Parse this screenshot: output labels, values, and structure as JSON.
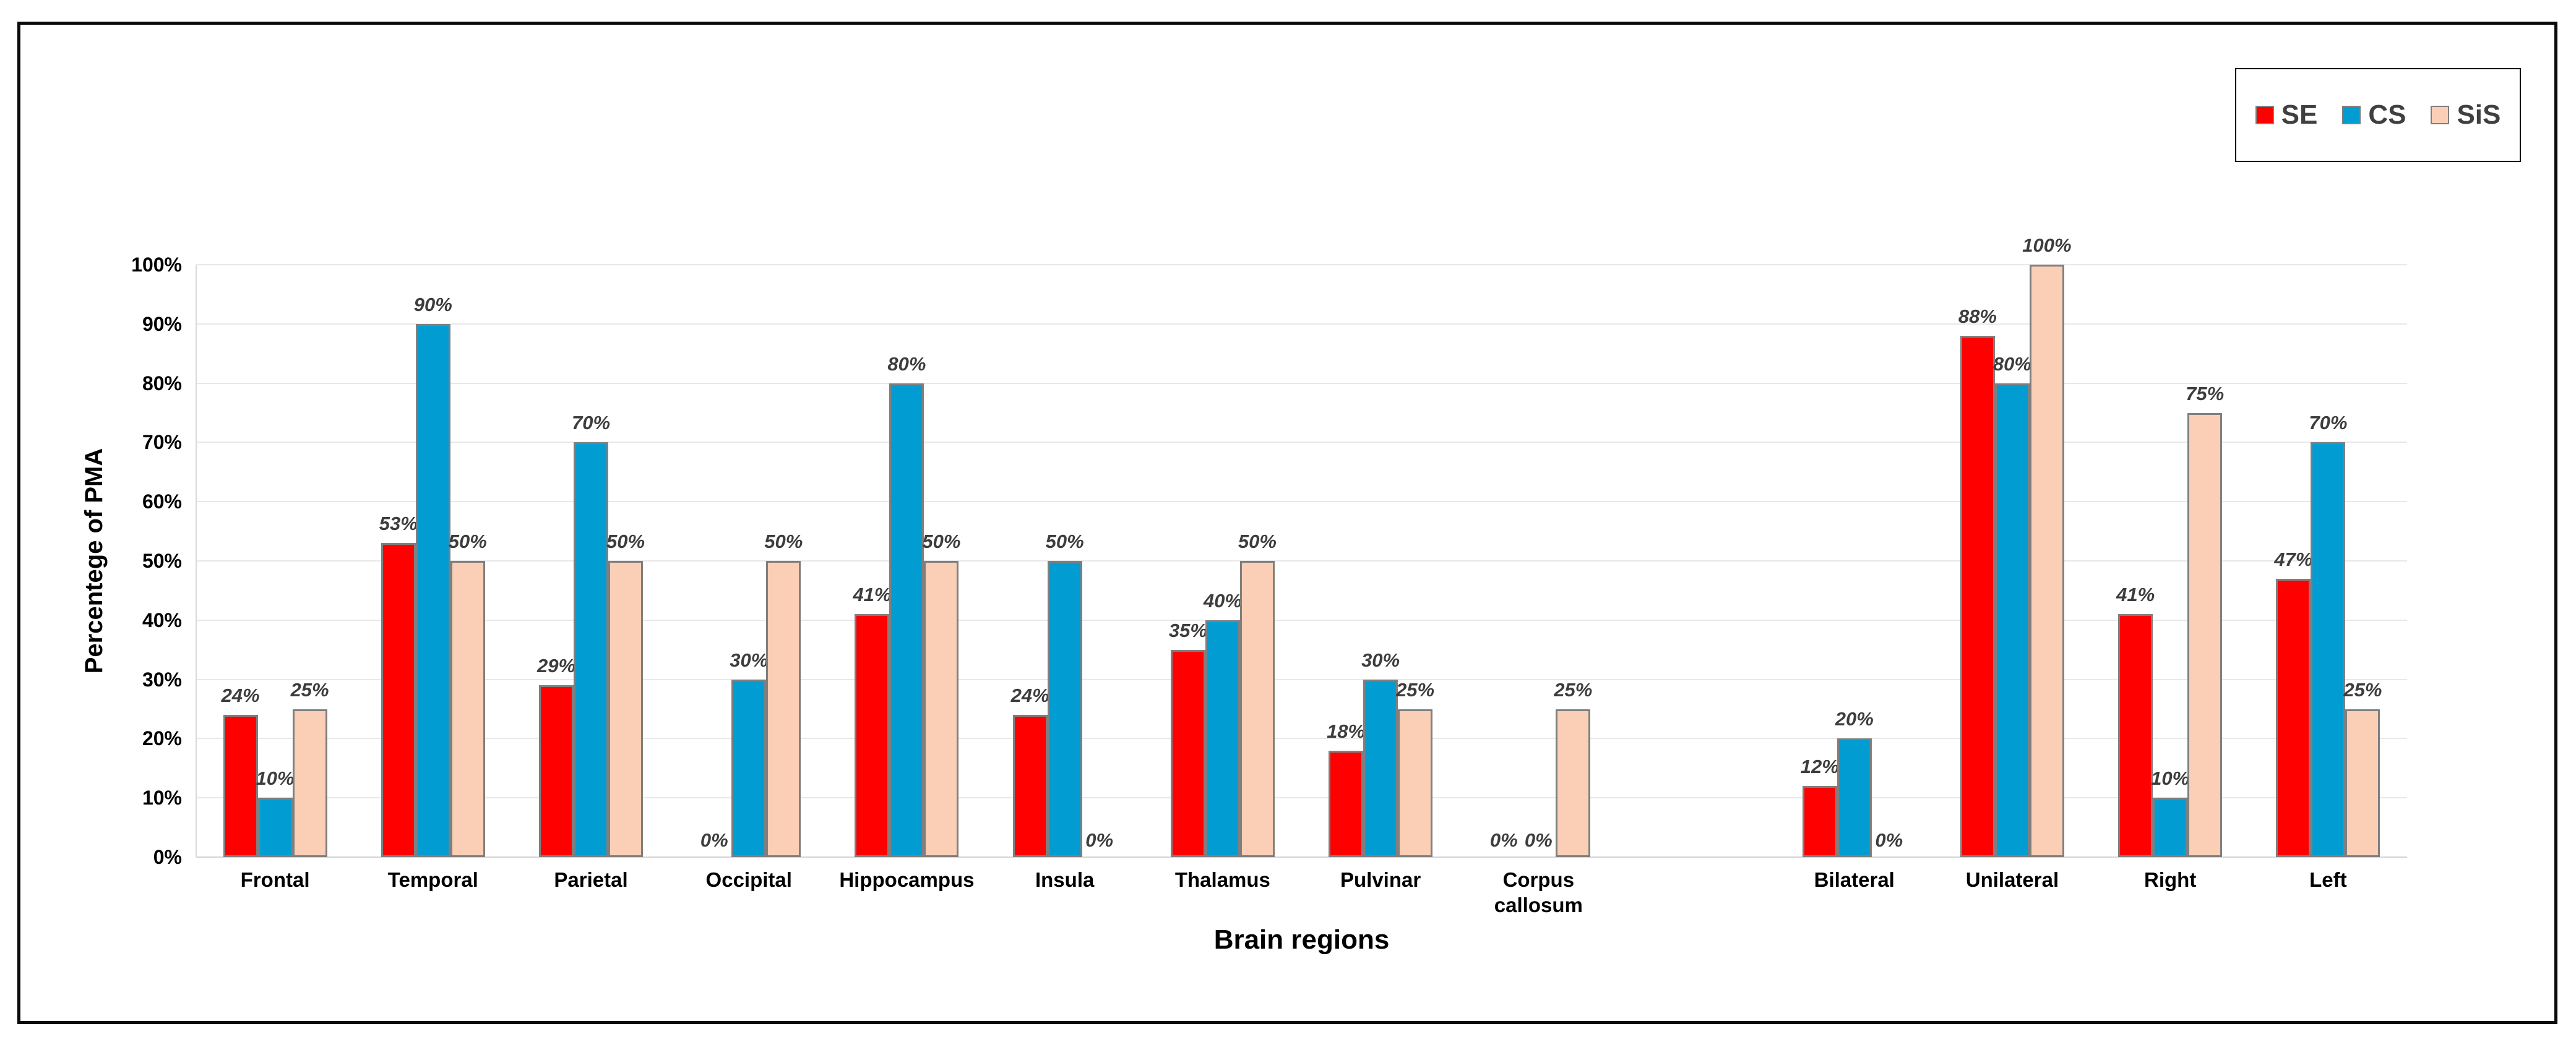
{
  "chart_data": {
    "type": "bar",
    "title": "",
    "xlabel": "Brain regions",
    "ylabel": "Percentege of PMA",
    "categories": [
      "Frontal",
      "Temporal",
      "Parietal",
      "Occipital",
      "Hippocampus",
      "Insula",
      "Thalamus",
      "Pulvinar",
      "Corpus callosum",
      "",
      "Bilateral",
      "Unilateral",
      "Right",
      "Left"
    ],
    "series": [
      {
        "name": "SE",
        "color": "#fe0000",
        "values": [
          24,
          53,
          29,
          0,
          41,
          24,
          35,
          18,
          0,
          null,
          12,
          88,
          41,
          47
        ]
      },
      {
        "name": "CS",
        "color": "#019dd2",
        "values": [
          10,
          90,
          70,
          30,
          80,
          50,
          40,
          30,
          0,
          null,
          20,
          80,
          10,
          70
        ]
      },
      {
        "name": "SiS",
        "color": "#fbcfb5",
        "values": [
          25,
          50,
          50,
          50,
          50,
          0,
          50,
          25,
          25,
          null,
          0,
          100,
          75,
          25
        ]
      }
    ],
    "y_ticks": [
      "0%",
      "10%",
      "20%",
      "30%",
      "40%",
      "50%",
      "60%",
      "70%",
      "80%",
      "90%",
      "100%"
    ],
    "ylim": [
      0,
      100
    ],
    "grid": true,
    "legend_position": "top-right",
    "data_label_format": "{v}%"
  }
}
